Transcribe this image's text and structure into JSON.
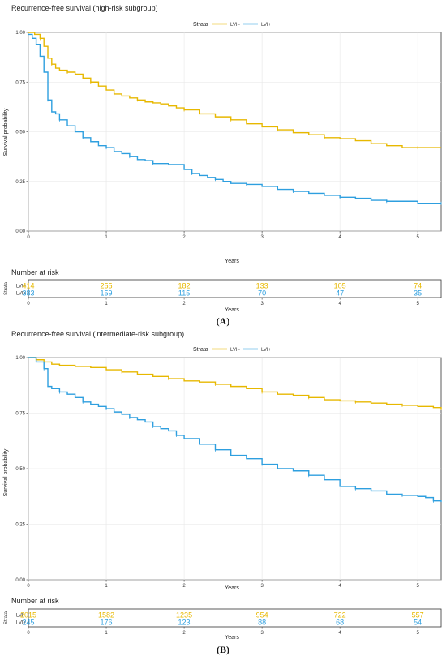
{
  "colors": {
    "lvi_neg": "#E7B800",
    "lvi_pos": "#2E9FDF",
    "grid": "#e6e6e6",
    "frame": "#333333"
  },
  "legend": {
    "title": "Strata",
    "items": [
      "LVI−",
      "LVI+"
    ]
  },
  "risk_table": {
    "title": "Number at risk",
    "ylabel": "Strata",
    "row_labels": [
      "LVI−",
      "LVI+"
    ]
  },
  "chart_data": [
    {
      "type": "line",
      "panel_label": "(A)",
      "title": "Recurrence-free survival (high-risk subgroup)",
      "xlabel": "Years",
      "ylabel": "Survival probability",
      "xlim": [
        0,
        5.3
      ],
      "ylim": [
        0,
        1
      ],
      "x_ticks": [
        0,
        1,
        2,
        3,
        4,
        5
      ],
      "y_ticks": [
        "0.00",
        "0.25",
        "0.50",
        "0.75",
        "1.00"
      ],
      "grid": true,
      "legend_position": "top",
      "series": [
        {
          "name": "LVI−",
          "x": [
            0,
            0.08,
            0.15,
            0.2,
            0.25,
            0.3,
            0.35,
            0.4,
            0.5,
            0.6,
            0.7,
            0.8,
            0.9,
            1.0,
            1.1,
            1.2,
            1.3,
            1.4,
            1.5,
            1.6,
            1.7,
            1.8,
            1.9,
            2.0,
            2.2,
            2.4,
            2.6,
            2.8,
            3.0,
            3.2,
            3.4,
            3.6,
            3.8,
            4.0,
            4.2,
            4.4,
            4.6,
            4.8,
            5.0,
            5.3
          ],
          "y": [
            1.0,
            0.99,
            0.97,
            0.93,
            0.87,
            0.84,
            0.82,
            0.81,
            0.8,
            0.79,
            0.77,
            0.75,
            0.73,
            0.71,
            0.69,
            0.68,
            0.67,
            0.66,
            0.65,
            0.645,
            0.64,
            0.63,
            0.62,
            0.61,
            0.59,
            0.575,
            0.56,
            0.54,
            0.525,
            0.51,
            0.495,
            0.485,
            0.47,
            0.465,
            0.455,
            0.44,
            0.43,
            0.42,
            0.42,
            0.42
          ]
        },
        {
          "name": "LVI+",
          "x": [
            0,
            0.05,
            0.1,
            0.15,
            0.2,
            0.25,
            0.3,
            0.35,
            0.4,
            0.5,
            0.6,
            0.7,
            0.8,
            0.9,
            1.0,
            1.1,
            1.2,
            1.3,
            1.4,
            1.5,
            1.6,
            1.8,
            2.0,
            2.1,
            2.2,
            2.3,
            2.4,
            2.5,
            2.6,
            2.8,
            3.0,
            3.2,
            3.4,
            3.6,
            3.8,
            4.0,
            4.2,
            4.4,
            4.6,
            4.8,
            5.0,
            5.3
          ],
          "y": [
            0.99,
            0.97,
            0.94,
            0.88,
            0.8,
            0.66,
            0.6,
            0.59,
            0.56,
            0.53,
            0.5,
            0.47,
            0.45,
            0.43,
            0.42,
            0.4,
            0.39,
            0.375,
            0.36,
            0.355,
            0.34,
            0.335,
            0.31,
            0.29,
            0.28,
            0.27,
            0.26,
            0.25,
            0.24,
            0.235,
            0.225,
            0.21,
            0.2,
            0.19,
            0.18,
            0.17,
            0.165,
            0.155,
            0.15,
            0.15,
            0.14,
            0.14
          ]
        }
      ],
      "at_risk": {
        "times": [
          0,
          1,
          2,
          3,
          4,
          5
        ],
        "LVI−": [
          414,
          255,
          182,
          133,
          105,
          74
        ],
        "LVI+": [
          383,
          159,
          115,
          70,
          47,
          35
        ]
      }
    },
    {
      "type": "line",
      "panel_label": "(B)",
      "title": "Recurrence-free survival (intermediate-risk subgroup)",
      "xlabel": "Years",
      "ylabel": "Survival probability",
      "xlim": [
        0,
        5.3
      ],
      "ylim": [
        0,
        1
      ],
      "x_ticks": [
        0,
        1,
        2,
        3,
        4,
        5
      ],
      "y_ticks": [
        "0.00",
        "0.25",
        "0.50",
        "0.75",
        "1.00"
      ],
      "grid": true,
      "legend_position": "top",
      "series": [
        {
          "name": "LVI−",
          "x": [
            0,
            0.1,
            0.2,
            0.3,
            0.4,
            0.6,
            0.8,
            1.0,
            1.2,
            1.4,
            1.6,
            1.8,
            2.0,
            2.2,
            2.4,
            2.6,
            2.8,
            3.0,
            3.2,
            3.4,
            3.6,
            3.8,
            4.0,
            4.2,
            4.4,
            4.6,
            4.8,
            5.0,
            5.2,
            5.3
          ],
          "y": [
            1.0,
            0.99,
            0.98,
            0.97,
            0.965,
            0.96,
            0.955,
            0.945,
            0.935,
            0.925,
            0.915,
            0.905,
            0.895,
            0.89,
            0.88,
            0.87,
            0.86,
            0.845,
            0.835,
            0.83,
            0.82,
            0.81,
            0.805,
            0.8,
            0.795,
            0.79,
            0.785,
            0.78,
            0.775,
            0.77
          ]
        },
        {
          "name": "LVI+",
          "x": [
            0,
            0.1,
            0.2,
            0.25,
            0.3,
            0.4,
            0.5,
            0.6,
            0.7,
            0.8,
            0.9,
            1.0,
            1.1,
            1.2,
            1.3,
            1.4,
            1.5,
            1.6,
            1.7,
            1.8,
            1.9,
            2.0,
            2.2,
            2.4,
            2.6,
            2.8,
            3.0,
            3.2,
            3.4,
            3.6,
            3.8,
            4.0,
            4.2,
            4.4,
            4.6,
            4.8,
            5.0,
            5.1,
            5.2,
            5.3
          ],
          "y": [
            1.0,
            0.98,
            0.95,
            0.87,
            0.86,
            0.845,
            0.835,
            0.82,
            0.8,
            0.79,
            0.78,
            0.77,
            0.755,
            0.745,
            0.73,
            0.72,
            0.71,
            0.69,
            0.68,
            0.67,
            0.65,
            0.635,
            0.61,
            0.585,
            0.56,
            0.545,
            0.52,
            0.5,
            0.49,
            0.47,
            0.45,
            0.42,
            0.41,
            0.4,
            0.385,
            0.38,
            0.375,
            0.37,
            0.355,
            0.35
          ]
        }
      ],
      "at_risk": {
        "times": [
          0,
          1,
          2,
          3,
          4,
          5
        ],
        "LVI−": [
          2015,
          1582,
          1235,
          954,
          722,
          557
        ],
        "LVI+": [
          245,
          176,
          123,
          88,
          68,
          54
        ]
      }
    }
  ]
}
